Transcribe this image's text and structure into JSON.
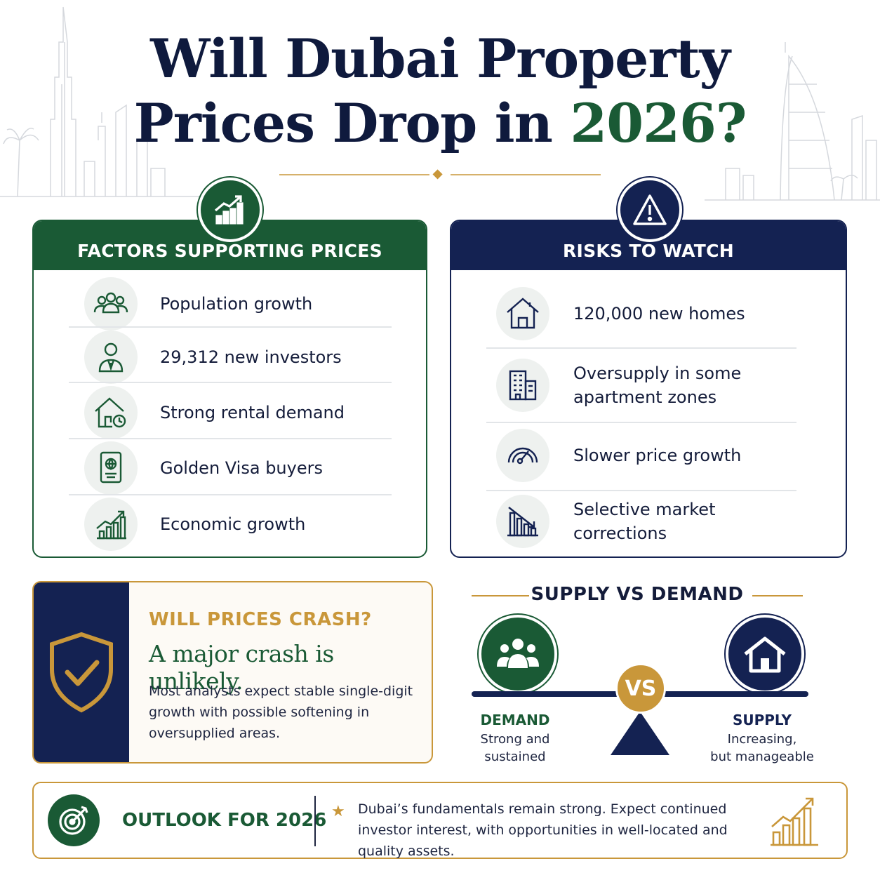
{
  "title": {
    "line1": "Will Dubai Property",
    "line2_prefix": "Prices Drop in",
    "line2_year": "2026?"
  },
  "supporting": {
    "heading": "FACTORS SUPPORTING PRICES",
    "items": [
      {
        "label": "Population growth",
        "icon": "people-group-icon"
      },
      {
        "label": "29,312 new investors",
        "icon": "businessman-icon"
      },
      {
        "label": "Strong rental demand",
        "icon": "house-clock-icon"
      },
      {
        "label": "Golden Visa buyers",
        "icon": "passport-icon"
      },
      {
        "label": "Economic growth",
        "icon": "growth-chart-icon"
      }
    ]
  },
  "risks": {
    "heading": "RISKS TO WATCH",
    "items": [
      {
        "label": "120,000 new homes",
        "icon": "house-icon"
      },
      {
        "label_line1": "Oversupply in some",
        "label_line2": "apartment zones",
        "icon": "buildings-icon"
      },
      {
        "label": "Slower price growth",
        "icon": "speedometer-icon"
      },
      {
        "label_line1": "Selective market",
        "label_line2": "corrections",
        "icon": "declining-chart-icon"
      }
    ]
  },
  "crash": {
    "kicker": "WILL PRICES CRASH?",
    "headline": "A major crash is unlikely.",
    "body": "Most analysts expect stable single-digit growth with possible softening in oversupplied areas."
  },
  "supply_vs_demand": {
    "title": "SUPPLY VS DEMAND",
    "vs": "VS",
    "demand_label": "DEMAND",
    "demand_sub_line1": "Strong and",
    "demand_sub_line2": "sustained",
    "supply_label": "SUPPLY",
    "supply_sub_line1": "Increasing,",
    "supply_sub_line2": "but manageable"
  },
  "outlook": {
    "label": "OUTLOOK FOR 2026",
    "text": "Dubai’s fundamentals remain strong. Expect continued investor interest, with opportunities in well-located and quality assets."
  },
  "colors": {
    "green": "#1a5a35",
    "navy": "#142252",
    "gold": "#c9973a"
  }
}
